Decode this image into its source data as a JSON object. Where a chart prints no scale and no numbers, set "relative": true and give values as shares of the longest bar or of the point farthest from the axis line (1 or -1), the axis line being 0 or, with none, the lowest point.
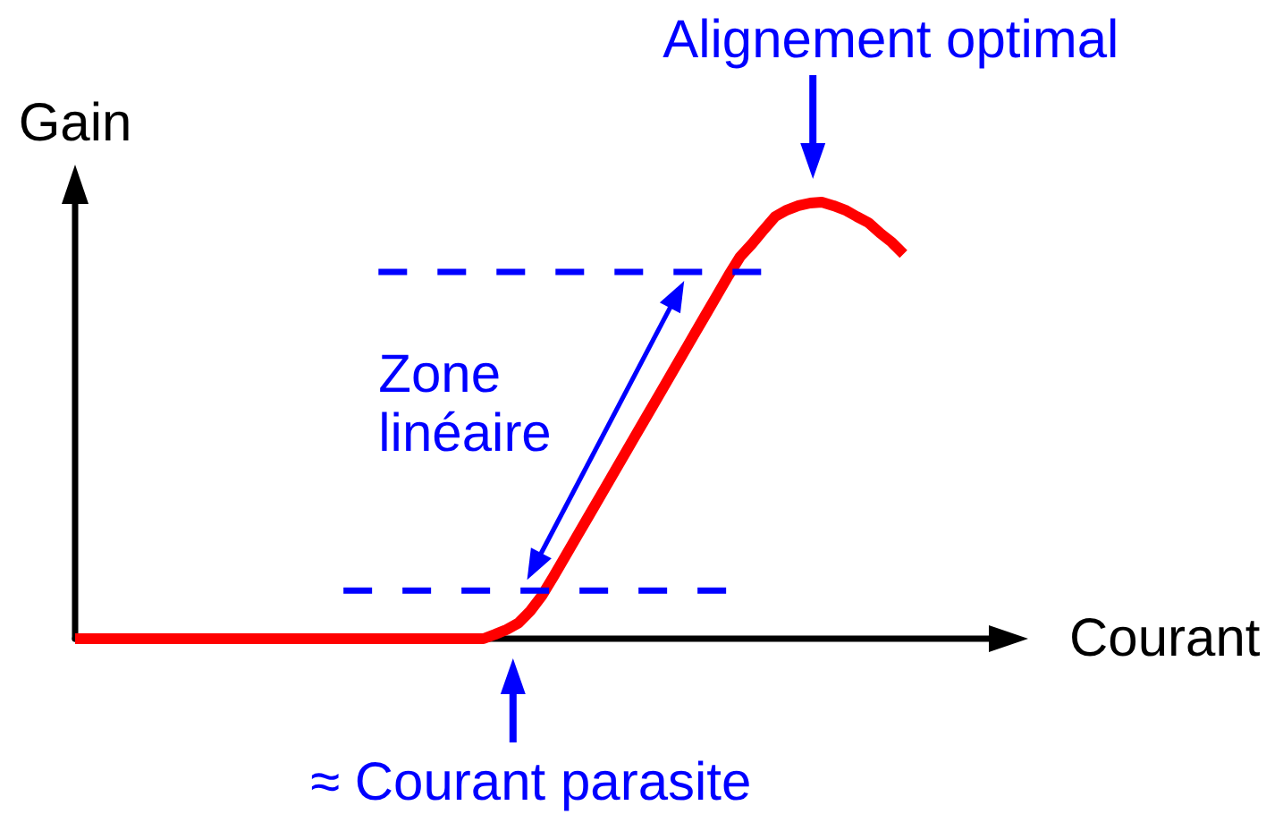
{
  "chart_data": {
    "type": "line",
    "xlabel": "Courant",
    "ylabel": "Gain",
    "relative": true,
    "marker": "none",
    "categories": [
      null,
      null,
      null,
      null,
      null,
      null,
      null,
      null,
      null,
      null,
      null,
      null,
      null,
      null,
      null,
      null,
      null,
      null,
      null,
      null,
      null,
      null,
      null,
      null,
      null,
      null,
      null,
      null,
      null,
      null,
      null,
      null,
      null,
      null,
      null,
      null,
      null,
      null,
      null,
      null,
      null,
      null,
      null,
      null,
      null,
      null,
      null,
      null,
      null,
      null,
      null,
      null,
      null,
      null,
      null,
      null,
      null,
      null,
      null,
      null,
      null,
      null,
      null,
      null,
      null,
      null,
      null,
      null,
      null,
      null,
      null,
      null,
      null,
      null,
      null,
      null,
      null,
      null,
      null,
      null,
      null
    ],
    "series": [
      {
        "color": "#ff0000",
        "line_style": "solid",
        "values": [
          0,
          0,
          0,
          0,
          0,
          0,
          0,
          0,
          0,
          0,
          0,
          0,
          0,
          0,
          0,
          0,
          0,
          0,
          0,
          0,
          0,
          0,
          0,
          0,
          0,
          0,
          0,
          0,
          0,
          0,
          0,
          0,
          0,
          0,
          0,
          0,
          0.01,
          0.021,
          0.036,
          0.063,
          0.098,
          0.142,
          0.188,
          0.234,
          0.28,
          0.326,
          0.372,
          0.418,
          0.464,
          0.51,
          0.556,
          0.602,
          0.648,
          0.694,
          0.74,
          0.786,
          0.832,
          0.875,
          0.904,
          0.936,
          0.967,
          0.982,
          0.992,
          0.998,
          1,
          0.992,
          0.982,
          0.967,
          0.953,
          0.929,
          0.908,
          0.881,
          null,
          null,
          null,
          null,
          null,
          null,
          null,
          null,
          null
        ]
      },
      {
        "color": "#0000ff",
        "line_style": "dashed",
        "values": [
          null,
          null,
          null,
          null,
          null,
          null,
          null,
          null,
          null,
          null,
          null,
          null,
          null,
          null,
          null,
          null,
          null,
          null,
          null,
          null,
          null,
          null,
          null,
          null,
          null,
          null,
          0.84,
          0.84,
          0.84,
          0.84,
          0.84,
          0.84,
          0.84,
          0.84,
          0.84,
          0.84,
          0.84,
          0.84,
          0.84,
          0.84,
          0.84,
          0.84,
          0.84,
          0.84,
          0.84,
          0.84,
          0.84,
          0.84,
          0.84,
          0.84,
          0.84,
          0.84,
          0.84,
          0.84,
          0.84,
          0.84,
          0.84,
          0.84,
          0.84,
          0.84,
          null,
          null,
          null,
          null,
          null,
          null,
          null,
          null,
          null,
          null,
          null,
          null,
          null,
          null,
          null,
          null,
          null,
          null,
          null,
          null,
          null
        ]
      },
      {
        "color": "#0000ff",
        "line_style": "dashed",
        "values": [
          null,
          null,
          null,
          null,
          null,
          null,
          null,
          null,
          null,
          null,
          null,
          null,
          null,
          null,
          null,
          null,
          null,
          null,
          null,
          null,
          null,
          null,
          null,
          0.11,
          0.11,
          0.11,
          0.11,
          0.11,
          0.11,
          0.11,
          0.11,
          0.11,
          0.11,
          0.11,
          0.11,
          0.11,
          0.11,
          0.11,
          0.11,
          0.11,
          0.11,
          0.11,
          0.11,
          0.11,
          0.11,
          0.11,
          0.11,
          0.11,
          0.11,
          0.11,
          0.11,
          0.11,
          0.11,
          0.11,
          0.11,
          0.11,
          0.11,
          null,
          null,
          null,
          null,
          null,
          null,
          null,
          null,
          null,
          null,
          null,
          null,
          null,
          null,
          null,
          null,
          null,
          null,
          null,
          null,
          null,
          null,
          null,
          null
        ]
      }
    ],
    "annotations": [
      "Alignement optimal",
      "Zone linéaire",
      "≈ Courant parasite"
    ]
  }
}
